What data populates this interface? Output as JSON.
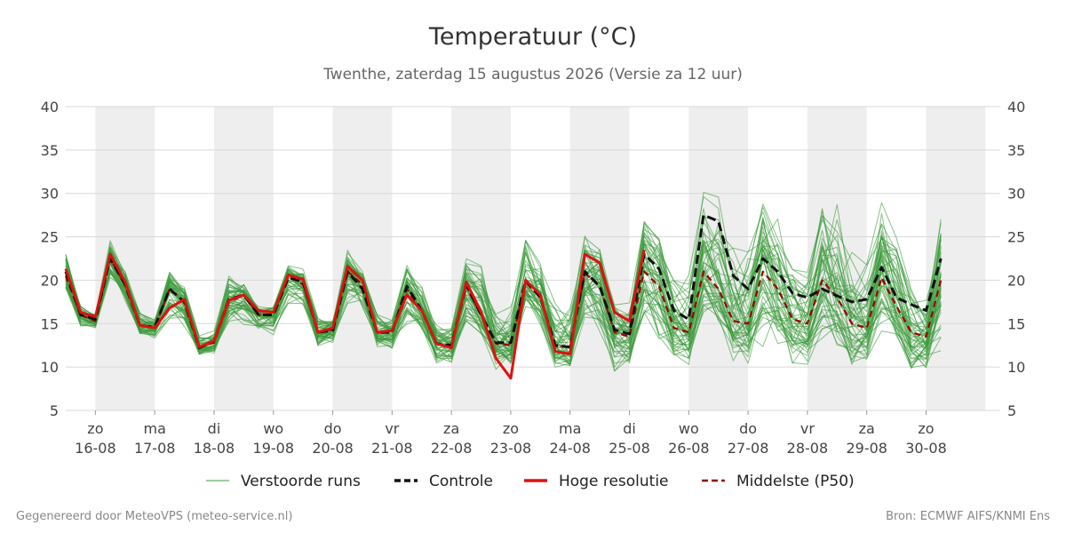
{
  "chart_data": {
    "type": "line",
    "title": "Temperatuur (°C)",
    "subtitle": "Twenthe, zaterdag 15 augustus 2026 (Versie za 12 uur)",
    "ylim": [
      5,
      40
    ],
    "yticks": [
      5,
      10,
      15,
      20,
      25,
      30,
      35,
      40
    ],
    "grid": true,
    "legend_position": "bottom",
    "x_range": [
      "2026-08-15 12:00",
      "2026-08-31 06:00"
    ],
    "x_step_hours": 6,
    "x_ticks": [
      {
        "day": "zo",
        "date": "16-08"
      },
      {
        "day": "ma",
        "date": "17-08"
      },
      {
        "day": "di",
        "date": "18-08"
      },
      {
        "day": "wo",
        "date": "19-08"
      },
      {
        "day": "do",
        "date": "20-08"
      },
      {
        "day": "vr",
        "date": "21-08"
      },
      {
        "day": "za",
        "date": "22-08"
      },
      {
        "day": "zo",
        "date": "23-08"
      },
      {
        "day": "ma",
        "date": "24-08"
      },
      {
        "day": "di",
        "date": "25-08"
      },
      {
        "day": "wo",
        "date": "26-08"
      },
      {
        "day": "do",
        "date": "27-08"
      },
      {
        "day": "vr",
        "date": "28-08"
      },
      {
        "day": "za",
        "date": "29-08"
      },
      {
        "day": "zo",
        "date": "30-08"
      }
    ],
    "series": [
      {
        "name": "Controle",
        "color": "#111111",
        "style": "dashed",
        "values": [
          21.0,
          16.0,
          15.5,
          22.5,
          19.5,
          14.8,
          14.6,
          19.0,
          17.5,
          12.2,
          13.0,
          17.8,
          18.3,
          16.0,
          16.0,
          20.3,
          19.8,
          14.0,
          14.2,
          21.0,
          19.0,
          14.0,
          14.0,
          19.3,
          16.5,
          12.7,
          12.5,
          19.5,
          16.0,
          12.8,
          12.8,
          20.0,
          18.0,
          12.5,
          12.3,
          21.0,
          19.3,
          14.3,
          13.8,
          23.0,
          21.3,
          16.5,
          15.5,
          27.5,
          26.8,
          20.5,
          19.0,
          22.5,
          21.0,
          18.5,
          18.0,
          19.0,
          18.2,
          17.5,
          17.8,
          21.5,
          18.0,
          17.2,
          16.5,
          22.5
        ]
      },
      {
        "name": "Hoge resolutie",
        "color": "#dd1111",
        "style": "solid",
        "values": [
          21.3,
          16.3,
          15.8,
          23.0,
          19.8,
          14.8,
          14.5,
          16.8,
          17.8,
          12.3,
          13.0,
          17.7,
          18.3,
          16.5,
          16.3,
          20.6,
          20.1,
          14.0,
          14.5,
          21.6,
          20.0,
          14.0,
          14.2,
          18.3,
          16.5,
          12.7,
          12.2,
          19.8,
          16.3,
          11.0,
          8.7,
          20.0,
          18.3,
          11.8,
          11.5,
          23.0,
          22.0,
          16.3,
          15.3,
          23.5
        ]
      },
      {
        "name": "Middelste (P50)",
        "color": "#990000",
        "style": "dashed",
        "values": [
          20.5,
          16.0,
          15.3,
          22.5,
          19.5,
          14.8,
          14.5,
          19.0,
          17.5,
          12.3,
          12.8,
          17.5,
          18.3,
          16.0,
          16.0,
          20.5,
          19.5,
          14.0,
          14.3,
          21.0,
          19.5,
          14.0,
          14.0,
          19.0,
          16.5,
          12.7,
          12.5,
          19.3,
          16.0,
          12.7,
          12.5,
          19.8,
          18.0,
          12.5,
          12.3,
          20.8,
          19.3,
          14.0,
          13.5,
          21.0,
          19.3,
          14.5,
          14.0,
          21.0,
          19.0,
          15.3,
          15.0,
          21.0,
          19.0,
          15.5,
          15.0,
          20.0,
          18.0,
          15.0,
          14.5,
          20.3,
          17.0,
          14.0,
          13.5,
          20.0
        ]
      }
    ],
    "ensemble": {
      "name": "Verstoorde runs",
      "color": "#3a9a3a",
      "members": 50,
      "p10": [
        19.0,
        14.8,
        14.6,
        20.5,
        18.0,
        13.8,
        13.5,
        16.0,
        15.2,
        11.5,
        11.8,
        15.5,
        15.5,
        14.5,
        14.0,
        17.8,
        17.5,
        12.5,
        13.0,
        17.5,
        16.5,
        12.5,
        12.2,
        15.5,
        14.5,
        10.5,
        10.5,
        15.5,
        14.0,
        9.8,
        10.5,
        17.0,
        15.0,
        10.0,
        10.0,
        16.0,
        15.0,
        10.0,
        10.5,
        14.5,
        13.5,
        11.5,
        11.0,
        15.5,
        15.5,
        11.5,
        11.0,
        13.0,
        13.0,
        11.0,
        11.0,
        14.0,
        13.0,
        10.5,
        10.5,
        15.0,
        13.0,
        10.0,
        10.0,
        13.0
      ],
      "p50": [
        20.5,
        16.0,
        15.3,
        22.5,
        19.5,
        14.8,
        14.5,
        19.0,
        17.5,
        12.3,
        12.8,
        17.5,
        18.3,
        16.0,
        16.0,
        20.5,
        19.5,
        14.0,
        14.3,
        21.0,
        19.5,
        14.0,
        14.0,
        19.0,
        16.5,
        12.7,
        12.5,
        19.3,
        16.0,
        12.7,
        12.5,
        19.8,
        18.0,
        12.5,
        12.3,
        20.8,
        19.3,
        14.0,
        13.5,
        21.0,
        19.3,
        14.5,
        14.0,
        21.0,
        19.0,
        15.3,
        15.0,
        21.0,
        19.0,
        15.5,
        15.0,
        20.0,
        18.0,
        15.0,
        14.5,
        20.3,
        17.0,
        14.0,
        13.5,
        20.0
      ],
      "p90": [
        23.0,
        17.0,
        16.0,
        24.5,
        21.0,
        16.0,
        15.5,
        21.0,
        19.0,
        13.5,
        14.0,
        20.0,
        19.5,
        17.0,
        17.0,
        21.5,
        21.0,
        15.5,
        15.5,
        23.0,
        21.0,
        16.0,
        15.5,
        21.5,
        19.0,
        14.5,
        14.5,
        22.0,
        21.0,
        16.0,
        16.5,
        25.0,
        22.0,
        17.0,
        17.0,
        24.5,
        23.5,
        17.0,
        17.0,
        27.0,
        25.0,
        20.0,
        20.0,
        29.0,
        28.0,
        23.0,
        22.0,
        29.0,
        26.0,
        22.0,
        21.0,
        30.0,
        28.0,
        22.0,
        21.0,
        29.0,
        25.0,
        19.0,
        17.0,
        27.0
      ]
    }
  },
  "legend": [
    {
      "label": "Verstoorde runs",
      "color": "#3a9a3a",
      "style": "thin"
    },
    {
      "label": "Controle",
      "color": "#111111",
      "style": "dashed"
    },
    {
      "label": "Hoge resolutie",
      "color": "#dd1111",
      "style": "thick"
    },
    {
      "label": "Middelste (P50)",
      "color": "#990000",
      "style": "dashed"
    }
  ],
  "footer": {
    "left": "Gegenereerd door MeteoVPS (meteo-service.nl)",
    "right": "Bron: ECMWF AIFS/KNMI Ens"
  }
}
